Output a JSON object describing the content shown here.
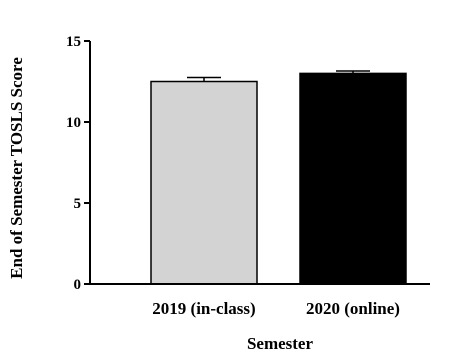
{
  "chart_data": {
    "type": "bar",
    "categories": [
      "2019 (in-class)",
      "2020 (online)"
    ],
    "values": [
      12.5,
      13.0
    ],
    "error": [
      0.25,
      0.15
    ],
    "bar_colors": [
      "#d3d3d3",
      "#000000"
    ],
    "xlabel": "Semester",
    "ylabel": "End of Semester TOSLS Score",
    "ylim": [
      0,
      15
    ],
    "yticks": [
      0,
      5,
      10,
      15
    ],
    "grid": false,
    "legend": "none"
  }
}
